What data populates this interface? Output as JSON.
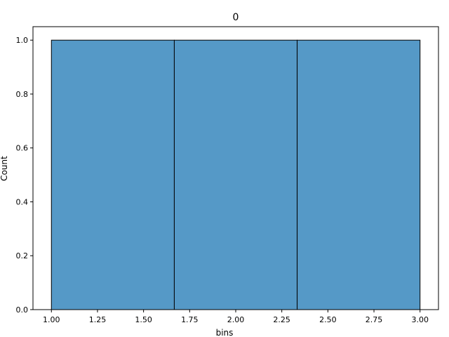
{
  "chart_data": {
    "type": "bar",
    "title": "0",
    "xlabel": "bins",
    "ylabel": "Count",
    "bins": [
      {
        "start": 1.0,
        "end": 1.6667,
        "count": 1
      },
      {
        "start": 1.6667,
        "end": 2.3333,
        "count": 1
      },
      {
        "start": 2.3333,
        "end": 3.0,
        "count": 1
      }
    ],
    "xlim": [
      0.9,
      3.1
    ],
    "ylim": [
      0,
      1.05
    ],
    "xticks": [
      "1.00",
      "1.25",
      "1.50",
      "1.75",
      "2.00",
      "2.25",
      "2.50",
      "2.75",
      "3.00"
    ],
    "yticks": [
      "0.0",
      "0.2",
      "0.4",
      "0.6",
      "0.8",
      "1.0"
    ],
    "grid": false,
    "bar_color": "#5599c7",
    "edge_color": "#000000"
  }
}
